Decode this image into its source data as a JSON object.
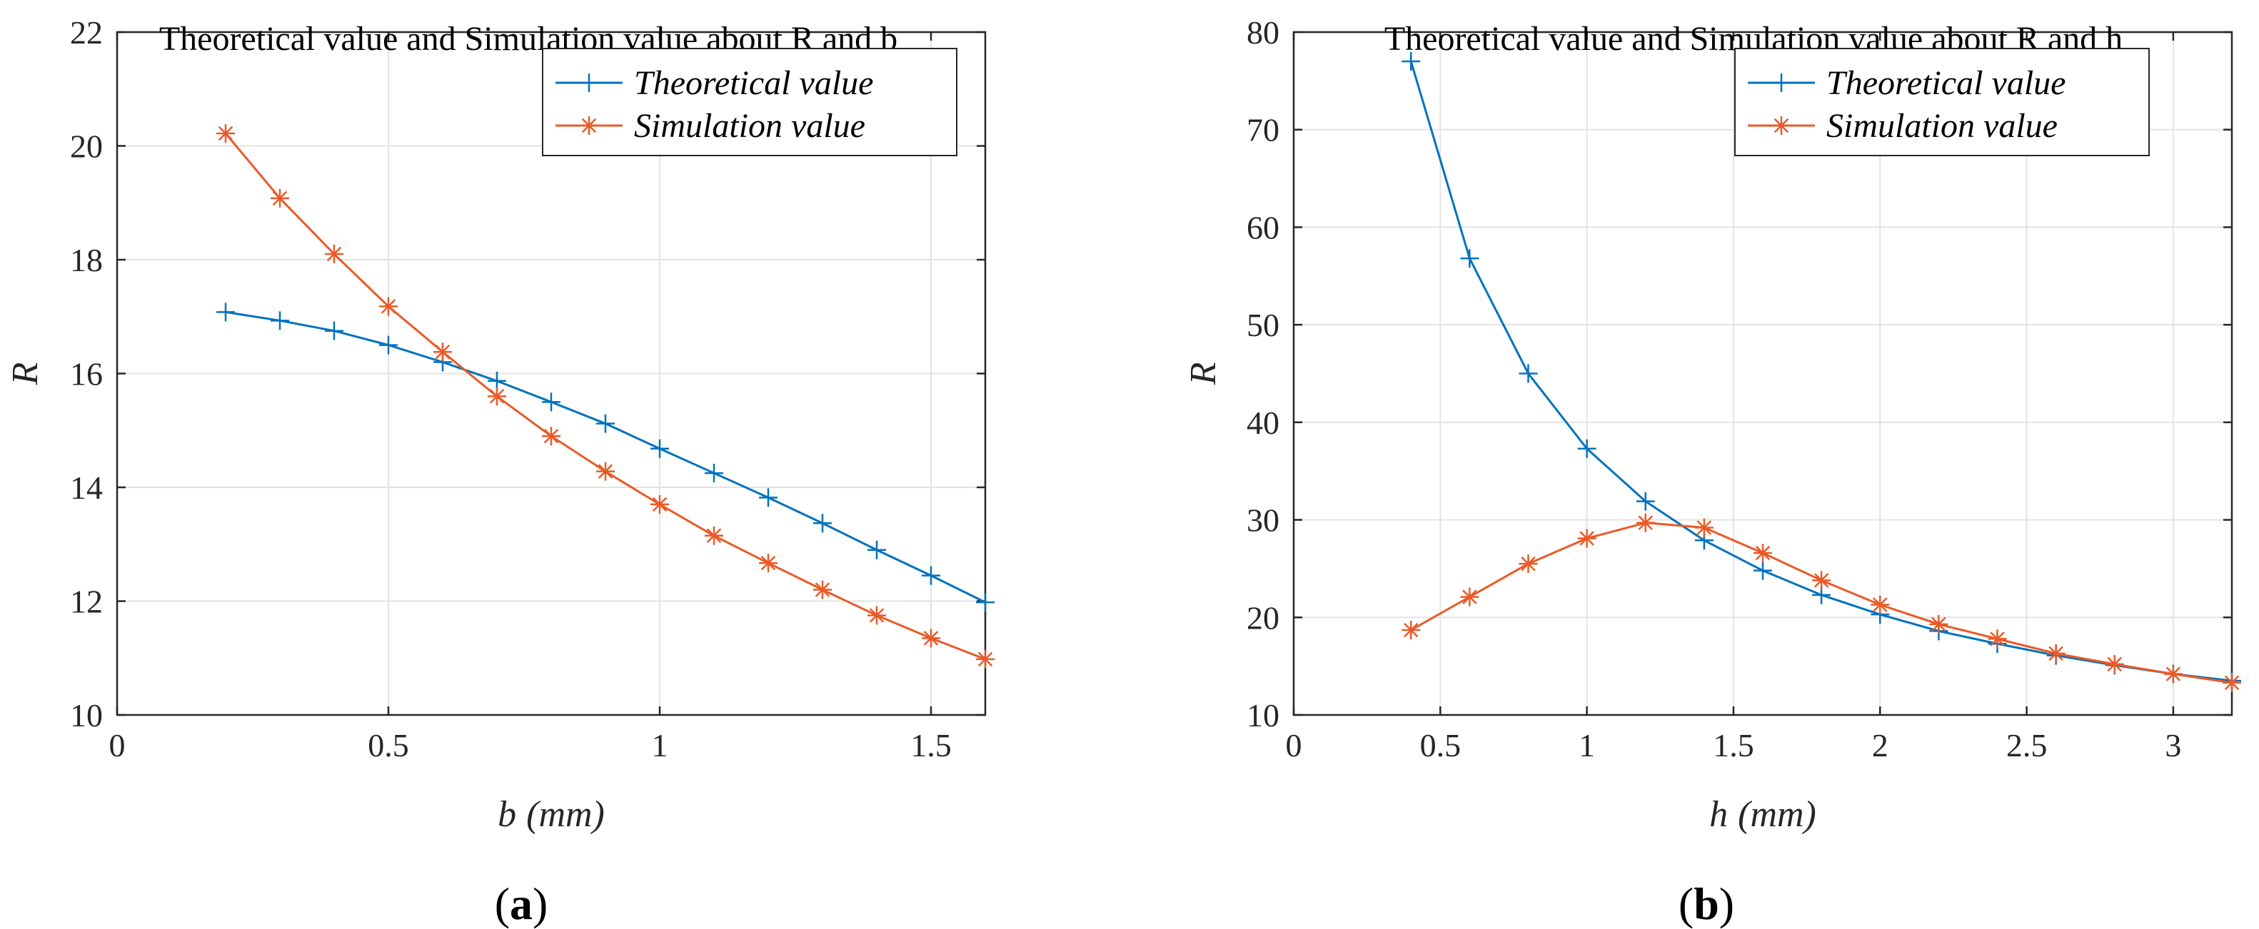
{
  "chart_data": [
    {
      "type": "line",
      "title": "Theoretical value and Simulation value about R and b",
      "xlabel": "b (mm)",
      "xlabel_var": "b",
      "xlabel_unit": "(mm)",
      "ylabel": "R",
      "xlim": [
        0,
        1.6
      ],
      "ylim": [
        10,
        22
      ],
      "xticks": [
        0,
        0.5,
        1,
        1.5
      ],
      "xtick_labels": [
        "0",
        "0.5",
        "1",
        "1.5"
      ],
      "yticks": [
        10,
        12,
        14,
        16,
        18,
        20,
        22
      ],
      "ytick_labels": [
        "10",
        "12",
        "14",
        "16",
        "18",
        "20",
        "22"
      ],
      "grid": true,
      "legend_position": "top-right",
      "panel_label": "(a)",
      "panel_letter": "a",
      "x": [
        0.2,
        0.3,
        0.4,
        0.5,
        0.6,
        0.7,
        0.8,
        0.9,
        1.0,
        1.1,
        1.2,
        1.3,
        1.4,
        1.5,
        1.6
      ],
      "series": [
        {
          "name": "Theoretical value",
          "marker": "+",
          "color": "#0072BD",
          "values": [
            17.08,
            16.93,
            16.75,
            16.5,
            16.2,
            15.87,
            15.5,
            15.12,
            14.68,
            14.25,
            13.82,
            13.37,
            12.9,
            12.45,
            11.98
          ]
        },
        {
          "name": "Simulation value",
          "marker": "*",
          "color": "#EA5A28",
          "values": [
            20.22,
            19.08,
            18.1,
            17.18,
            16.38,
            15.6,
            14.9,
            14.28,
            13.7,
            13.15,
            12.67,
            12.2,
            11.75,
            11.35,
            10.98
          ]
        }
      ]
    },
    {
      "type": "line",
      "title": "Theoretical value and Simulation value about R and h",
      "xlabel": "h (mm)",
      "xlabel_var": "h",
      "xlabel_unit": "(mm)",
      "ylabel": "R",
      "xlim": [
        0,
        3.2
      ],
      "ylim": [
        10,
        80
      ],
      "xticks": [
        0,
        0.5,
        1,
        1.5,
        2,
        2.5,
        3
      ],
      "xtick_labels": [
        "0",
        "0.5",
        "1",
        "1.5",
        "2",
        "2.5",
        "3"
      ],
      "yticks": [
        10,
        20,
        30,
        40,
        50,
        60,
        70,
        80
      ],
      "ytick_labels": [
        "10",
        "20",
        "30",
        "40",
        "50",
        "60",
        "70",
        "80"
      ],
      "grid": true,
      "legend_position": "top-right",
      "panel_label": "(b)",
      "panel_letter": "b",
      "x": [
        0.4,
        0.6,
        0.8,
        1.0,
        1.2,
        1.4,
        1.6,
        1.8,
        2.0,
        2.2,
        2.4,
        2.6,
        2.8,
        3.0,
        3.2
      ],
      "series": [
        {
          "name": "Theoretical value",
          "marker": "+",
          "color": "#0072BD",
          "values": [
            77.0,
            56.8,
            45.0,
            37.3,
            31.9,
            27.9,
            24.8,
            22.3,
            20.3,
            18.6,
            17.3,
            16.1,
            15.1,
            14.2,
            13.5
          ]
        },
        {
          "name": "Simulation value",
          "marker": "*",
          "color": "#EA5A28",
          "values": [
            18.7,
            22.1,
            25.5,
            28.1,
            29.7,
            29.2,
            26.6,
            23.8,
            21.3,
            19.3,
            17.8,
            16.3,
            15.2,
            14.2,
            13.3
          ]
        }
      ]
    }
  ]
}
